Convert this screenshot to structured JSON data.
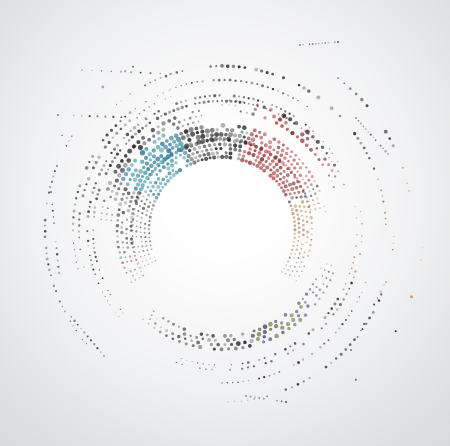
{
  "image": {
    "background_color": "#e3e4e5",
    "center_color": "#ffffff",
    "dot_colors": [
      "#222222",
      "#3c3c3c",
      "#6e6e6e",
      "#9b9b9b",
      "#2f7d96",
      "#4ea1b2",
      "#8b2f2f",
      "#b84b4b",
      "#9a6a2d",
      "#c48a45",
      "#6a7d38",
      "#5b4b7a"
    ]
  }
}
